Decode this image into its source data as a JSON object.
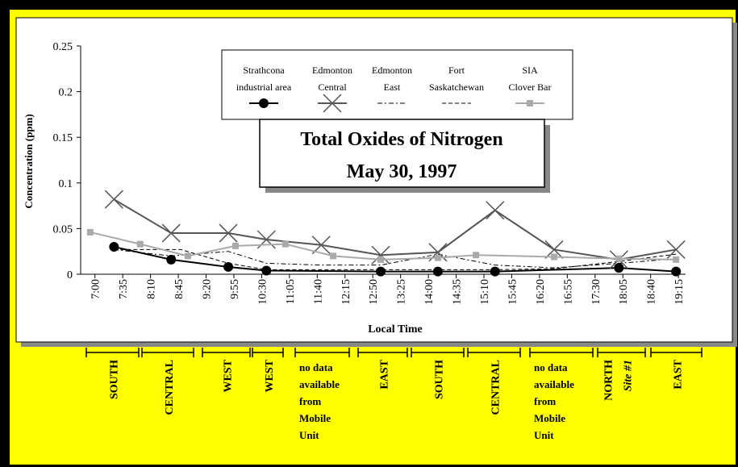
{
  "chart_data": {
    "type": "line",
    "title": "Total Oxides of Nitrogen",
    "subtitle": "May 30, 1997",
    "xlabel": "Local Time",
    "ylabel": "Concentration (ppm)",
    "xlim": [
      6.7,
      19.4
    ],
    "xticks": [
      {
        "value": 7,
        "label": "7:00"
      },
      {
        "value": 7.5833,
        "label": "7:35"
      },
      {
        "value": 8.1667,
        "label": "8:10"
      },
      {
        "value": 8.75,
        "label": "8:45"
      },
      {
        "value": 9.3333,
        "label": "9:20"
      },
      {
        "value": 9.9167,
        "label": "9:55"
      },
      {
        "value": 10.5,
        "label": "10:30"
      },
      {
        "value": 11.0833,
        "label": "11:05"
      },
      {
        "value": 11.6667,
        "label": "11:40"
      },
      {
        "value": 12.25,
        "label": "12:15"
      },
      {
        "value": 12.8333,
        "label": "12:50"
      },
      {
        "value": 13.4167,
        "label": "13:25"
      },
      {
        "value": 14,
        "label": "14:00"
      },
      {
        "value": 14.5833,
        "label": "14:35"
      },
      {
        "value": 15.1667,
        "label": "15:10"
      },
      {
        "value": 15.75,
        "label": "15:45"
      },
      {
        "value": 16.3333,
        "label": "16:20"
      },
      {
        "value": 16.9167,
        "label": "16:55"
      },
      {
        "value": 17.5,
        "label": "17:30"
      },
      {
        "value": 18.0833,
        "label": "18:05"
      },
      {
        "value": 18.6667,
        "label": "18:40"
      },
      {
        "value": 19.25,
        "label": "19:15"
      }
    ],
    "ylim": [
      0,
      0.25
    ],
    "yticks": [
      0,
      0.05,
      0.1,
      0.15,
      0.2,
      0.25
    ],
    "series": [
      {
        "name": "Strathcona\nindustrial area",
        "color": "#000000",
        "marker": "circle",
        "dash": "solid",
        "x": [
          7.4,
          8.6,
          9.8,
          10.6,
          13.0,
          14.2,
          15.4,
          18.0,
          19.2
        ],
        "values": [
          0.03,
          0.016,
          0.008,
          0.004,
          0.003,
          0.003,
          0.003,
          0.007,
          0.003
        ]
      },
      {
        "name": "Edmonton\nCentral",
        "color": "#555555",
        "marker": "x",
        "dash": "solid",
        "x": [
          7.4,
          8.6,
          9.8,
          10.6,
          11.75,
          13.0,
          14.2,
          15.4,
          16.64,
          18.0,
          19.2
        ],
        "values": [
          0.082,
          0.045,
          0.045,
          0.038,
          0.032,
          0.021,
          0.024,
          0.07,
          0.027,
          0.016,
          0.027
        ]
      },
      {
        "name": "Edmonton\nEast",
        "color": "#000000",
        "marker": "none",
        "dash": "dashdot",
        "x": [
          7.4,
          8.6,
          9.8,
          10.6,
          11.75,
          13.0,
          14.2,
          15.4,
          16.64,
          18.0,
          19.2
        ],
        "values": [
          0.027,
          0.02,
          0.025,
          0.012,
          0.01,
          0.01,
          0.022,
          0.01,
          0.007,
          0.012,
          0.017
        ]
      },
      {
        "name": "Fort\nSaskatchewan",
        "color": "#000000",
        "marker": "none",
        "dash": "dashed",
        "x": [
          7.4,
          8.8,
          9.8,
          10.6,
          11.75,
          13.0,
          14.2,
          15.4,
          16.64,
          18.0,
          19.2
        ],
        "values": [
          0.027,
          0.027,
          0.012,
          0.005,
          0.005,
          0.005,
          0.005,
          0.005,
          0.006,
          0.014,
          0.022
        ]
      },
      {
        "name": "SIA\nClover Bar",
        "color": "#aaaaaa",
        "marker": "square",
        "dash": "solid",
        "x": [
          6.9,
          7.95,
          8.95,
          9.95,
          11.0,
          12.0,
          13.0,
          14.2,
          15.0,
          16.64,
          18.0,
          19.2
        ],
        "values": [
          0.046,
          0.033,
          0.02,
          0.031,
          0.033,
          0.02,
          0.016,
          0.018,
          0.021,
          0.019,
          0.017,
          0.016
        ]
      }
    ],
    "regions": [
      {
        "label": "SOUTH"
      },
      {
        "label": "CENTRAL"
      },
      {
        "label": "WEST"
      },
      {
        "label": "WEST"
      },
      {
        "label": "no data\navailable\nfrom\nMobile\nUnit"
      },
      {
        "label": "EAST"
      },
      {
        "label": "SOUTH"
      },
      {
        "label": "CENTRAL"
      },
      {
        "label": "no data\navailable\nfrom\nMobile\nUnit"
      },
      {
        "label": "NORTH",
        "sublabel": "Site #1"
      },
      {
        "label": "EAST"
      }
    ]
  }
}
